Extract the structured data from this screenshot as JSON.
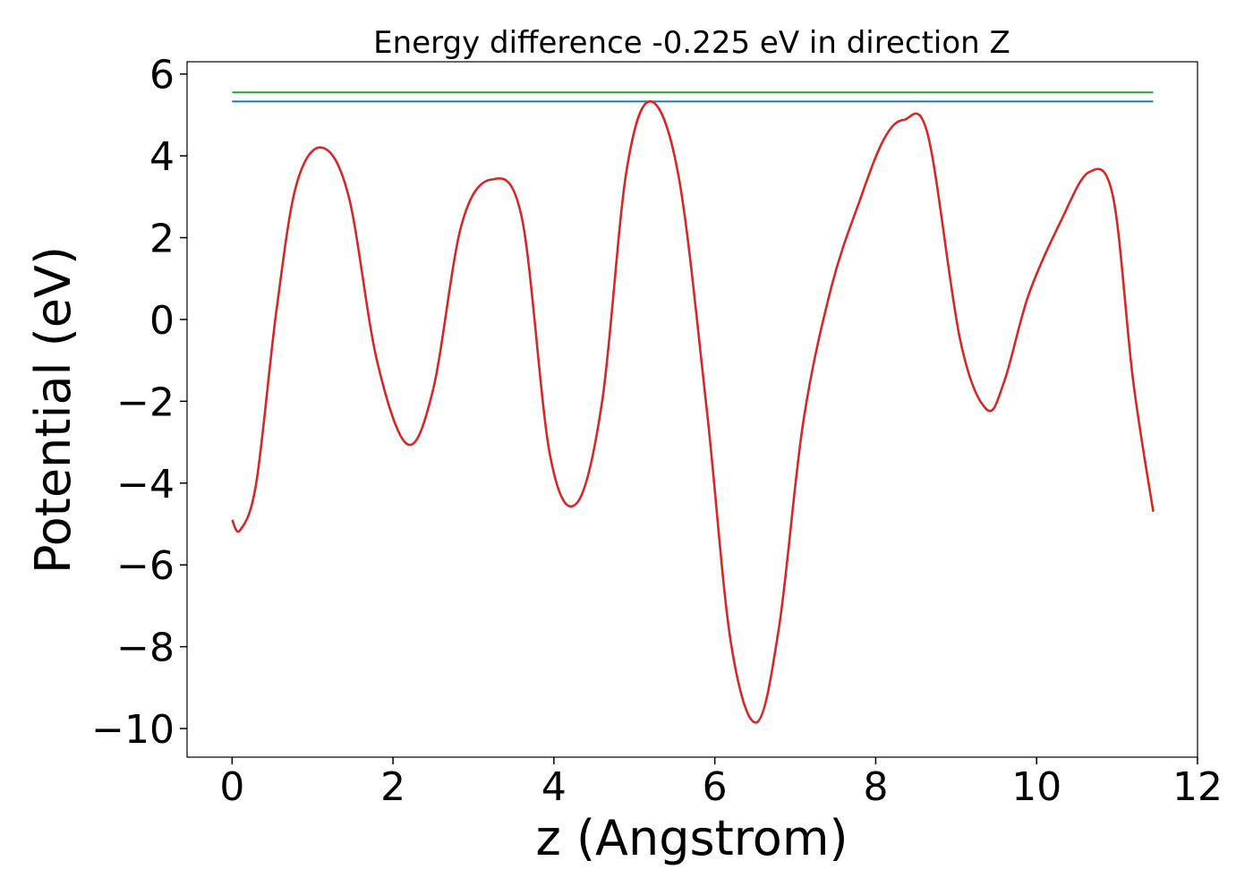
{
  "chart_data": {
    "type": "line",
    "title": "Energy difference -0.225 eV in direction Z",
    "xlabel": "z (Angstrom)",
    "ylabel": "Potential (eV)",
    "xlim": [
      -0.56,
      12.0
    ],
    "ylim": [
      -10.7,
      6.3
    ],
    "xticks": [
      0,
      2,
      4,
      6,
      8,
      10,
      12
    ],
    "yticks": [
      6,
      4,
      2,
      0,
      -2,
      -4,
      -6,
      -8,
      -10
    ],
    "grid": false,
    "legend": "none",
    "series": [
      {
        "color": "#2ca02c",
        "style": "horizontal",
        "x": [
          0,
          11.45
        ],
        "y": [
          5.55,
          5.55
        ]
      },
      {
        "color": "#1f77b4",
        "style": "horizontal",
        "x": [
          0,
          11.45
        ],
        "y": [
          5.33,
          5.33
        ]
      },
      {
        "color": "#d62728",
        "style": "curve",
        "x": [
          0,
          0.1,
          0.3,
          0.55,
          0.8,
          1.12,
          1.45,
          1.8,
          2.18,
          2.5,
          2.85,
          3.22,
          3.6,
          3.95,
          4.28,
          4.6,
          4.9,
          5.2,
          5.55,
          5.9,
          6.2,
          6.52,
          6.8,
          7.1,
          7.45,
          7.8,
          8.1,
          8.35,
          8.65,
          9.05,
          9.38,
          9.6,
          9.9,
          10.3,
          10.65,
          10.95,
          11.2,
          11.45
        ],
        "y": [
          -4.9,
          -5.15,
          -4.0,
          0.2,
          3.3,
          4.2,
          3.0,
          -1.0,
          -3.05,
          -1.7,
          2.3,
          3.42,
          2.5,
          -3.3,
          -4.5,
          -2.0,
          3.6,
          5.33,
          3.5,
          -2.2,
          -7.9,
          -9.85,
          -7.5,
          -2.5,
          0.8,
          2.9,
          4.4,
          4.88,
          4.5,
          -0.5,
          -2.2,
          -1.5,
          0.6,
          2.4,
          3.6,
          3.0,
          -1.5,
          -4.7
        ]
      }
    ]
  }
}
